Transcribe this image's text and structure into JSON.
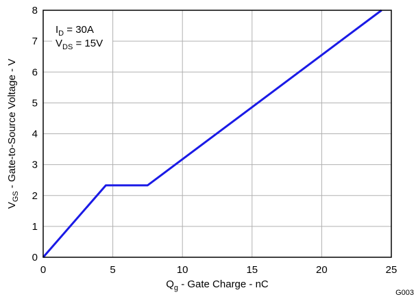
{
  "chart_data": {
    "type": "line",
    "xlabel": {
      "main": "Q",
      "sub": "g",
      "rest": " - Gate Charge - nC"
    },
    "ylabel": {
      "main": "V",
      "sub": "GS",
      "rest": " - Gate-to-Source Voltage - V"
    },
    "xlim": [
      0,
      25
    ],
    "ylim": [
      0,
      8
    ],
    "xticks": [
      "0",
      "5",
      "10",
      "15",
      "20",
      "25"
    ],
    "yticks": [
      "0",
      "1",
      "2",
      "3",
      "4",
      "5",
      "6",
      "7",
      "8"
    ],
    "grid": true,
    "series": [
      {
        "x": [
          0,
          4.5,
          7.5,
          24.3
        ],
        "y": [
          0,
          2.33,
          2.33,
          8.0
        ],
        "color": "#1a1ae6"
      }
    ],
    "annotations": [
      {
        "main": "I",
        "sub": "D",
        "rest": " = 30A"
      },
      {
        "main": "V",
        "sub": "DS",
        "rest": " = 15V"
      }
    ],
    "figure_id": "G003"
  }
}
